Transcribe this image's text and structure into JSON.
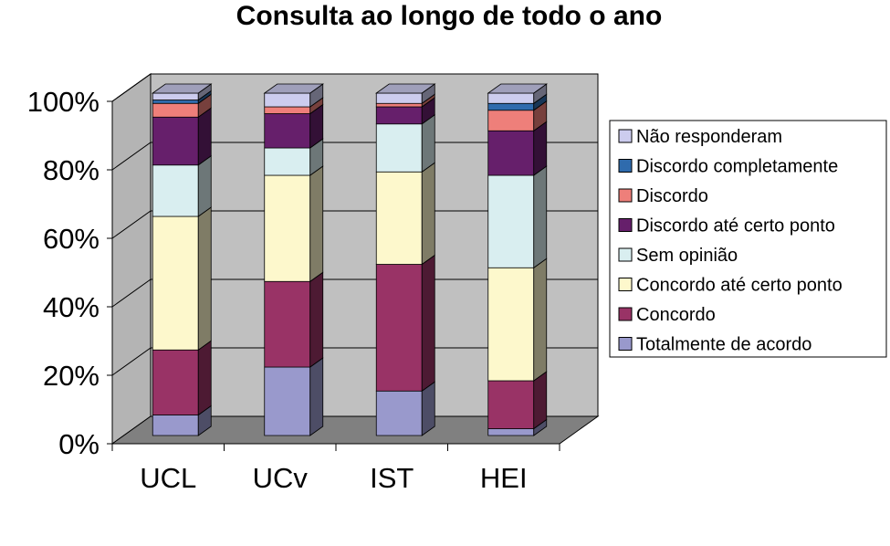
{
  "chart_data": {
    "type": "bar",
    "stacked": true,
    "three_d": true,
    "title": "Consulta ao longo de todo o ano",
    "categories": [
      "UCL",
      "UCv",
      "IST",
      "HEI"
    ],
    "y_tick_labels": [
      "0%",
      "20%",
      "40%",
      "60%",
      "80%",
      "100%"
    ],
    "ylim": [
      0,
      100
    ],
    "grid": true,
    "legend_position": "right",
    "series": [
      {
        "name": "Totalmente de acordo",
        "color": "#9999cc",
        "values": [
          6,
          20,
          13,
          2
        ]
      },
      {
        "name": "Concordo",
        "color": "#993366",
        "values": [
          19,
          25,
          37,
          14
        ]
      },
      {
        "name": "Concordo até certo ponto",
        "color": "#fdf8cc",
        "values": [
          39,
          31,
          27,
          33
        ]
      },
      {
        "name": "Sem opinião",
        "color": "#d9eef0",
        "values": [
          15,
          8,
          14,
          27
        ]
      },
      {
        "name": "Discordo até certo ponto",
        "color": "#661f6b",
        "values": [
          14,
          10,
          5,
          13
        ]
      },
      {
        "name": "Discordo",
        "color": "#ee7f7a",
        "values": [
          4,
          2,
          1,
          6
        ]
      },
      {
        "name": "Discordo completamente",
        "color": "#2f6bad",
        "values": [
          1,
          0,
          0,
          2
        ]
      },
      {
        "name": "Não responderam",
        "color": "#ccccee",
        "values": [
          2,
          4,
          3,
          3
        ]
      }
    ]
  }
}
